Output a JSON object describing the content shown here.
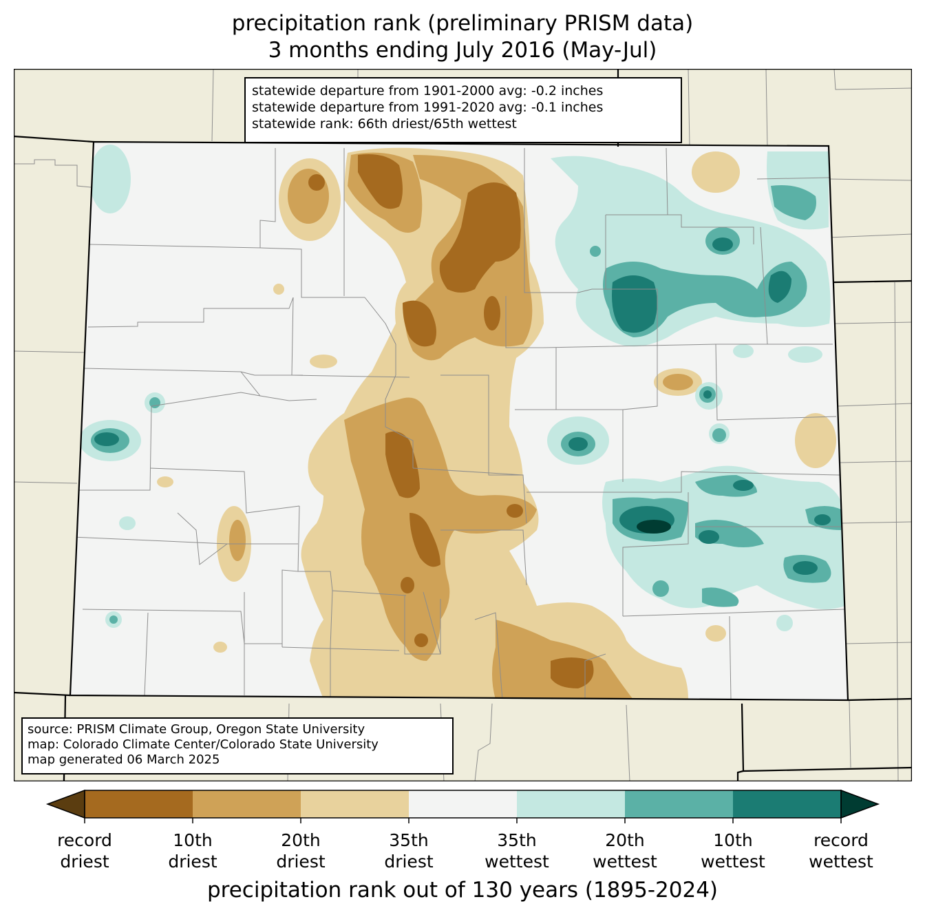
{
  "title": {
    "line1": "precipitation rank (preliminary PRISM data)",
    "line2": "3 months ending July 2016 (May-Jul)"
  },
  "stats": {
    "line1": "statewide departure from 1901-2000 avg: -0.2 inches",
    "line2": "statewide departure from 1991-2020 avg: -0.1 inches",
    "line3": "statewide rank: 66th driest/65th wettest"
  },
  "source": {
    "line1": "source: PRISM Climate Group, Oregon State University",
    "line2": "map: Colorado Climate Center/Colorado State University",
    "line3": "map generated 06 March 2025"
  },
  "colorbar": {
    "title": "precipitation rank out of 130 years (1895-2024)",
    "ticks": [
      {
        "l1": "record",
        "l2": "driest"
      },
      {
        "l1": "10th",
        "l2": "driest"
      },
      {
        "l1": "20th",
        "l2": "driest"
      },
      {
        "l1": "35th",
        "l2": "driest"
      },
      {
        "l1": "35th",
        "l2": "wettest"
      },
      {
        "l1": "20th",
        "l2": "wettest"
      },
      {
        "l1": "10th",
        "l2": "wettest"
      },
      {
        "l1": "record",
        "l2": "wettest"
      }
    ],
    "colors": [
      "#a56a1f",
      "#cfa257",
      "#e8d29d",
      "#f3f4f3",
      "#c4e8e1",
      "#5bb1a6",
      "#1b7c73"
    ],
    "extend_low": "#5b3d10",
    "extend_high": "#003c32"
  },
  "map_colors": {
    "background": "#efeddc",
    "state_fill": "#f3f4f3"
  }
}
